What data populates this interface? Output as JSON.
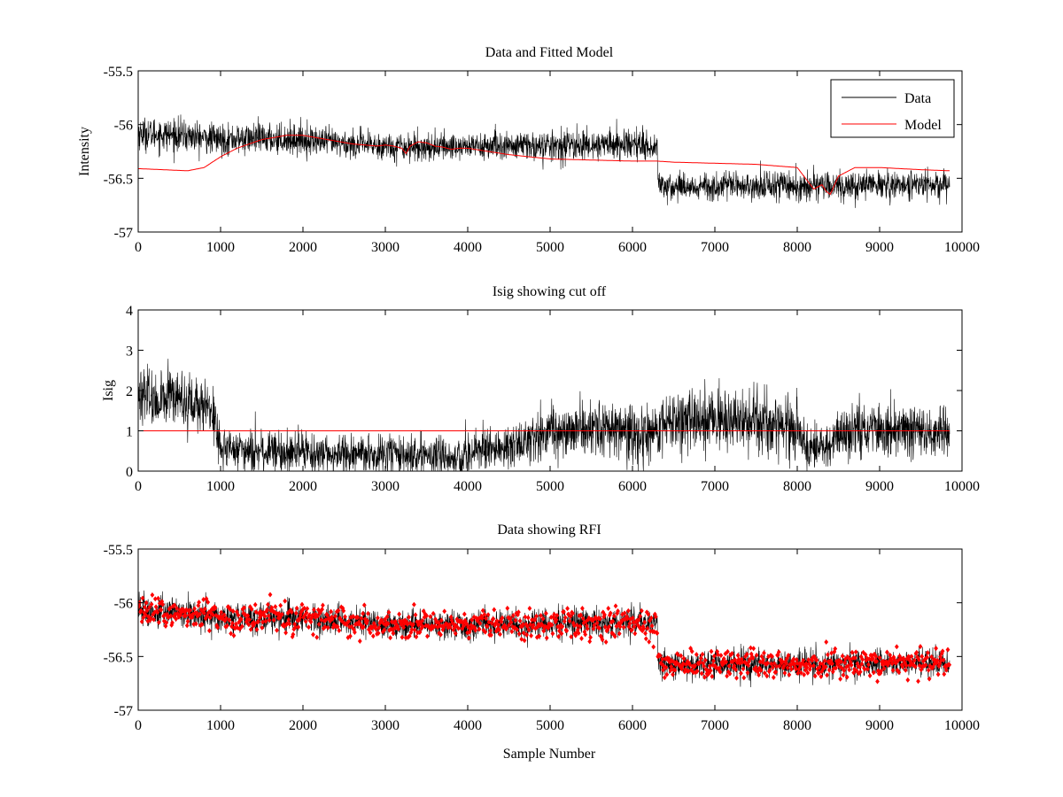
{
  "chart_data": [
    {
      "type": "line",
      "title": "Data and Fitted Model",
      "xlabel": "",
      "ylabel": "Intensity",
      "xlim": [
        0,
        10000
      ],
      "ylim": [
        -57,
        -55.5
      ],
      "xticks": [
        0,
        1000,
        2000,
        3000,
        4000,
        5000,
        6000,
        7000,
        8000,
        9000,
        10000
      ],
      "yticks": [
        -57,
        -56.5,
        -56,
        -55.5
      ],
      "grid": false,
      "legend_position": "top-right",
      "series": [
        {
          "name": "Data",
          "color": "#000000",
          "style": "noisy-line",
          "x": [
            0,
            500,
            1000,
            1500,
            2000,
            2500,
            3000,
            3500,
            4000,
            4500,
            5000,
            5500,
            6000,
            6300,
            6310,
            6500,
            7000,
            7500,
            8000,
            8500,
            9000,
            9500,
            9850
          ],
          "y": [
            -56.08,
            -56.1,
            -56.14,
            -56.13,
            -56.14,
            -56.18,
            -56.2,
            -56.21,
            -56.2,
            -56.2,
            -56.2,
            -56.19,
            -56.18,
            -56.2,
            -56.56,
            -56.58,
            -56.57,
            -56.57,
            -56.57,
            -56.57,
            -56.56,
            -56.56,
            -56.57
          ],
          "spread": [
            0.15,
            0.15,
            0.14,
            0.14,
            0.14,
            0.13,
            0.13,
            0.13,
            0.13,
            0.13,
            0.14,
            0.14,
            0.14,
            0.14,
            0.13,
            0.13,
            0.13,
            0.13,
            0.13,
            0.13,
            0.13,
            0.13,
            0.13
          ]
        },
        {
          "name": "Model",
          "color": "#ff0000",
          "style": "line",
          "x": [
            0,
            300,
            600,
            800,
            1000,
            1200,
            1500,
            1800,
            2000,
            2300,
            2600,
            2900,
            3000,
            3100,
            3200,
            3250,
            3300,
            3400,
            3500,
            3600,
            3700,
            3800,
            3900,
            4000,
            4500,
            5000,
            5500,
            6000,
            6300,
            6500,
            7000,
            7500,
            8000,
            8100,
            8200,
            8300,
            8350,
            8400,
            8500,
            8700,
            9000,
            9500,
            9850
          ],
          "y": [
            -56.41,
            -56.42,
            -56.43,
            -56.4,
            -56.3,
            -56.22,
            -56.14,
            -56.1,
            -56.1,
            -56.14,
            -56.18,
            -56.2,
            -56.19,
            -56.2,
            -56.22,
            -56.27,
            -56.2,
            -56.16,
            -56.17,
            -56.2,
            -56.21,
            -56.23,
            -56.22,
            -56.22,
            -56.28,
            -56.32,
            -56.33,
            -56.34,
            -56.34,
            -56.35,
            -56.36,
            -56.37,
            -56.4,
            -56.5,
            -56.6,
            -56.56,
            -56.62,
            -56.65,
            -56.48,
            -56.4,
            -56.4,
            -56.42,
            -56.43
          ]
        }
      ]
    },
    {
      "type": "line",
      "title": "Isig showing cut off",
      "xlabel": "",
      "ylabel": "Isig",
      "xlim": [
        0,
        10000
      ],
      "ylim": [
        0,
        4
      ],
      "xticks": [
        0,
        1000,
        2000,
        3000,
        4000,
        5000,
        6000,
        7000,
        8000,
        9000,
        10000
      ],
      "yticks": [
        0,
        1,
        2,
        3,
        4
      ],
      "grid": false,
      "series": [
        {
          "color": "#000000",
          "style": "noisy-line",
          "x": [
            0,
            500,
            900,
            1000,
            1200,
            2000,
            3000,
            4000,
            4500,
            4700,
            5000,
            6000,
            6300,
            6400,
            7000,
            7500,
            8000,
            8100,
            8400,
            8500,
            9000,
            9850
          ],
          "y": [
            1.8,
            1.8,
            1.5,
            0.6,
            0.5,
            0.45,
            0.4,
            0.4,
            0.6,
            0.8,
            1.0,
            1.0,
            0.9,
            1.2,
            1.3,
            1.3,
            1.0,
            0.6,
            0.6,
            1.0,
            1.0,
            1.0
          ],
          "spread": [
            0.7,
            0.75,
            0.6,
            0.55,
            0.5,
            0.5,
            0.5,
            0.5,
            0.55,
            0.6,
            0.65,
            0.7,
            0.7,
            0.75,
            0.75,
            0.75,
            0.7,
            0.55,
            0.55,
            0.65,
            0.65,
            0.65
          ]
        },
        {
          "color": "#ff0000",
          "style": "line",
          "x": [
            0,
            9850
          ],
          "y": [
            1,
            1
          ]
        }
      ]
    },
    {
      "type": "scatter",
      "title": "Data showing RFI",
      "xlabel": "Sample Number",
      "ylabel": "",
      "xlim": [
        0,
        10000
      ],
      "ylim": [
        -57,
        -55.5
      ],
      "xticks": [
        0,
        1000,
        2000,
        3000,
        4000,
        5000,
        6000,
        7000,
        8000,
        9000,
        10000
      ],
      "yticks": [
        -57,
        -56.5,
        -56,
        -55.5
      ],
      "grid": false,
      "series": [
        {
          "color": "#000000",
          "style": "noisy-line",
          "x": [
            0,
            500,
            1000,
            1500,
            2000,
            2500,
            3000,
            3500,
            4000,
            4500,
            5000,
            5500,
            6000,
            6300,
            6310,
            6500,
            7000,
            7500,
            8000,
            8500,
            9000,
            9500,
            9850
          ],
          "y": [
            -56.08,
            -56.1,
            -56.14,
            -56.13,
            -56.14,
            -56.18,
            -56.2,
            -56.21,
            -56.2,
            -56.2,
            -56.2,
            -56.19,
            -56.18,
            -56.2,
            -56.56,
            -56.58,
            -56.57,
            -56.57,
            -56.57,
            -56.57,
            -56.56,
            -56.56,
            -56.57
          ],
          "spread": [
            0.15,
            0.15,
            0.14,
            0.14,
            0.14,
            0.13,
            0.13,
            0.13,
            0.13,
            0.13,
            0.14,
            0.14,
            0.14,
            0.14,
            0.13,
            0.13,
            0.13,
            0.13,
            0.13,
            0.13,
            0.13,
            0.13,
            0.13
          ]
        },
        {
          "color": "#ff0000",
          "style": "noisy-markers",
          "x": [
            0,
            500,
            1000,
            1500,
            2000,
            2500,
            3000,
            3500,
            4000,
            4500,
            5000,
            5500,
            6000,
            6300,
            6310,
            6500,
            7000,
            7500,
            8000,
            8500,
            9000,
            9500,
            9850
          ],
          "y": [
            -56.08,
            -56.1,
            -56.14,
            -56.13,
            -56.14,
            -56.18,
            -56.2,
            -56.21,
            -56.2,
            -56.2,
            -56.2,
            -56.19,
            -56.18,
            -56.2,
            -56.56,
            -56.58,
            -56.57,
            -56.57,
            -56.57,
            -56.57,
            -56.56,
            -56.56,
            -56.57
          ],
          "spread": [
            0.15,
            0.15,
            0.14,
            0.14,
            0.14,
            0.13,
            0.13,
            0.13,
            0.13,
            0.13,
            0.14,
            0.14,
            0.14,
            0.14,
            0.13,
            0.13,
            0.13,
            0.13,
            0.13,
            0.13,
            0.13,
            0.13,
            0.13
          ]
        }
      ]
    }
  ]
}
